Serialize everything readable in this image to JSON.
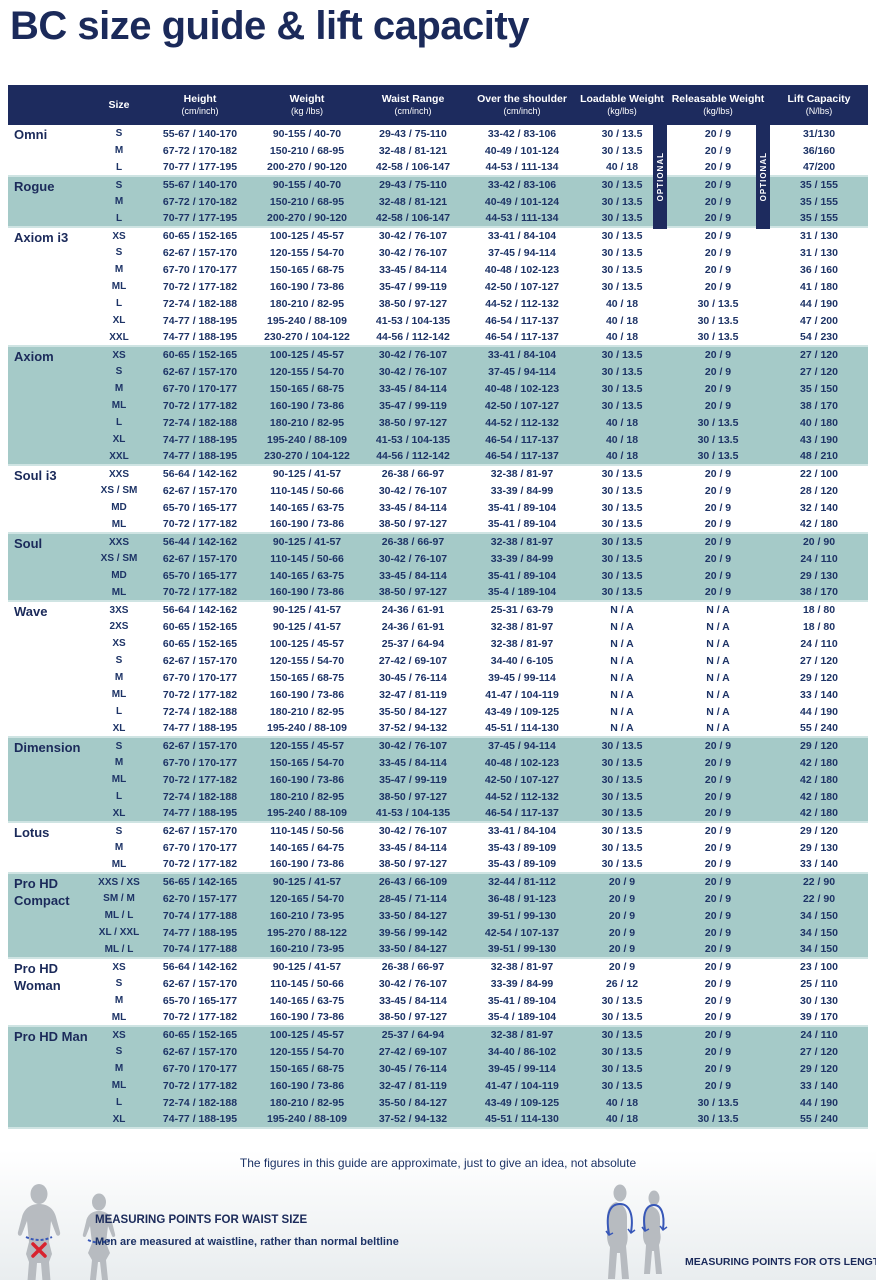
{
  "title": "BC size guide & lift capacity",
  "table": {
    "optional_label": "OPTIONAL",
    "columns": [
      {
        "label": "Size",
        "sub": ""
      },
      {
        "label": "Height",
        "sub": "(cm/inch)"
      },
      {
        "label": "Weight",
        "sub": "(kg /lbs)"
      },
      {
        "label": "Waist Range",
        "sub": "(cm/inch)"
      },
      {
        "label": "Over the shoulder",
        "sub": "(cm/inch)"
      },
      {
        "label": "Loadable Weight",
        "sub": "(kg/lbs)"
      },
      {
        "label": "Releasable Weight",
        "sub": "(kg/lbs)"
      },
      {
        "label": "Lift Capacity",
        "sub": "(N/lbs)"
      }
    ],
    "sections": [
      {
        "product": "Omni",
        "shade": "white",
        "rows": [
          [
            "S",
            "55-67 / 140-170",
            "90-155 / 40-70",
            "29-43 / 75-110",
            "33-42 / 83-106",
            "30 / 13.5",
            "20 / 9",
            "31/130"
          ],
          [
            "M",
            "67-72 / 170-182",
            "150-210 / 68-95",
            "32-48 / 81-121",
            "40-49 / 101-124",
            "30 / 13.5",
            "20 / 9",
            "36/160"
          ],
          [
            "L",
            "70-77 / 177-195",
            "200-270 / 90-120",
            "42-58 / 106-147",
            "44-53 / 111-134",
            "40 / 18",
            "20 / 9",
            "47/200"
          ]
        ]
      },
      {
        "product": "Rogue",
        "shade": "teal",
        "rows": [
          [
            "S",
            "55-67 / 140-170",
            "90-155 / 40-70",
            "29-43 / 75-110",
            "33-42 / 83-106",
            "30 / 13.5",
            "20 / 9",
            "35 / 155"
          ],
          [
            "M",
            "67-72 / 170-182",
            "150-210 / 68-95",
            "32-48 / 81-121",
            "40-49 / 101-124",
            "30 / 13.5",
            "20 / 9",
            "35 / 155"
          ],
          [
            "L",
            "70-77 / 177-195",
            "200-270 / 90-120",
            "42-58 / 106-147",
            "44-53 / 111-134",
            "30 / 13.5",
            "20 / 9",
            "35 / 155"
          ]
        ]
      },
      {
        "product": "Axiom i3",
        "shade": "white",
        "rows": [
          [
            "XS",
            "60-65 / 152-165",
            "100-125 / 45-57",
            "30-42 / 76-107",
            "33-41 / 84-104",
            "30 / 13.5",
            "20 / 9",
            "31 / 130"
          ],
          [
            "S",
            "62-67 / 157-170",
            "120-155 / 54-70",
            "30-42 / 76-107",
            "37-45 / 94-114",
            "30 / 13.5",
            "20 / 9",
            "31 / 130"
          ],
          [
            "M",
            "67-70 / 170-177",
            "150-165 / 68-75",
            "33-45 / 84-114",
            "40-48 / 102-123",
            "30 / 13.5",
            "20 / 9",
            "36 / 160"
          ],
          [
            "ML",
            "70-72 / 177-182",
            "160-190 / 73-86",
            "35-47 / 99-119",
            "42-50 / 107-127",
            "30 / 13.5",
            "20 / 9",
            "41 / 180"
          ],
          [
            "L",
            "72-74 / 182-188",
            "180-210 / 82-95",
            "38-50 / 97-127",
            "44-52 / 112-132",
            "40 / 18",
            "30 / 13.5",
            "44 / 190"
          ],
          [
            "XL",
            "74-77 / 188-195",
            "195-240 / 88-109",
            "41-53 / 104-135",
            "46-54 / 117-137",
            "40 / 18",
            "30 / 13.5",
            "47 / 200"
          ],
          [
            "XXL",
            "74-77 / 188-195",
            "230-270 / 104-122",
            "44-56 / 112-142",
            "46-54 / 117-137",
            "40 / 18",
            "30 / 13.5",
            "54 / 230"
          ]
        ]
      },
      {
        "product": "Axiom",
        "shade": "teal",
        "rows": [
          [
            "XS",
            "60-65 / 152-165",
            "100-125 / 45-57",
            "30-42 / 76-107",
            "33-41 / 84-104",
            "30 / 13.5",
            "20 / 9",
            "27 / 120"
          ],
          [
            "S",
            "62-67 / 157-170",
            "120-155 / 54-70",
            "30-42 / 76-107",
            "37-45 / 94-114",
            "30 / 13.5",
            "20 / 9",
            "27 / 120"
          ],
          [
            "M",
            "67-70 / 170-177",
            "150-165 / 68-75",
            "33-45 / 84-114",
            "40-48 / 102-123",
            "30 / 13.5",
            "20 / 9",
            "35 / 150"
          ],
          [
            "ML",
            "70-72 / 177-182",
            "160-190 / 73-86",
            "35-47 / 99-119",
            "42-50 / 107-127",
            "30 / 13.5",
            "20 / 9",
            "38 / 170"
          ],
          [
            "L",
            "72-74 / 182-188",
            "180-210 / 82-95",
            "38-50 / 97-127",
            "44-52 / 112-132",
            "40 / 18",
            "30 / 13.5",
            "40 / 180"
          ],
          [
            "XL",
            "74-77 / 188-195",
            "195-240 / 88-109",
            "41-53 / 104-135",
            "46-54 / 117-137",
            "40 / 18",
            "30 / 13.5",
            "43 / 190"
          ],
          [
            "XXL",
            "74-77 / 188-195",
            "230-270 / 104-122",
            "44-56 / 112-142",
            "46-54 / 117-137",
            "40 / 18",
            "30 / 13.5",
            "48 / 210"
          ]
        ]
      },
      {
        "product": "Soul i3",
        "shade": "white",
        "rows": [
          [
            "XXS",
            "56-64 / 142-162",
            "90-125 / 41-57",
            "26-38 / 66-97",
            "32-38 / 81-97",
            "30 / 13.5",
            "20 / 9",
            "22 / 100"
          ],
          [
            "XS / SM",
            "62-67 / 157-170",
            "110-145 / 50-66",
            "30-42 / 76-107",
            "33-39 / 84-99",
            "30 / 13.5",
            "20 / 9",
            "28 / 120"
          ],
          [
            "MD",
            "65-70 / 165-177",
            "140-165 / 63-75",
            "33-45 / 84-114",
            "35-41 / 89-104",
            "30 / 13.5",
            "20 / 9",
            "32 / 140"
          ],
          [
            "ML",
            "70-72 / 177-182",
            "160-190 / 73-86",
            "38-50 / 97-127",
            "35-41 / 89-104",
            "30 / 13.5",
            "20 / 9",
            "42 / 180"
          ]
        ]
      },
      {
        "product": "Soul",
        "shade": "teal",
        "rows": [
          [
            "XXS",
            "56-44 / 142-162",
            "90-125 / 41-57",
            "26-38 / 66-97",
            "32-38 / 81-97",
            "30 / 13.5",
            "20 / 9",
            "20 / 90"
          ],
          [
            "XS / SM",
            "62-67 / 157-170",
            "110-145 / 50-66",
            "30-42 / 76-107",
            "33-39 / 84-99",
            "30 / 13.5",
            "20 / 9",
            "24 / 110"
          ],
          [
            "MD",
            "65-70 / 165-177",
            "140-165 / 63-75",
            "33-45 / 84-114",
            "35-41 / 89-104",
            "30 / 13.5",
            "20 / 9",
            "29 / 130"
          ],
          [
            "ML",
            "70-72 / 177-182",
            "160-190 / 73-86",
            "38-50 / 97-127",
            "35-4 / 189-104",
            "30 / 13.5",
            "20 / 9",
            "38 / 170"
          ]
        ]
      },
      {
        "product": "Wave",
        "shade": "white",
        "rows": [
          [
            "3XS",
            "56-64 / 142-162",
            "90-125 / 41-57",
            "24-36 / 61-91",
            "25-31 / 63-79",
            "N / A",
            "N / A",
            "18 / 80"
          ],
          [
            "2XS",
            "60-65 / 152-165",
            "90-125 / 41-57",
            "24-36 / 61-91",
            "32-38 / 81-97",
            "N / A",
            "N / A",
            "18 / 80"
          ],
          [
            "XS",
            "60-65 / 152-165",
            "100-125 / 45-57",
            "25-37 / 64-94",
            "32-38 / 81-97",
            "N / A",
            "N / A",
            "24 / 110"
          ],
          [
            "S",
            "62-67 / 157-170",
            "120-155 / 54-70",
            "27-42 / 69-107",
            "34-40 / 6-105",
            "N / A",
            "N / A",
            "27 / 120"
          ],
          [
            "M",
            "67-70 / 170-177",
            "150-165 / 68-75",
            "30-45 / 76-114",
            "39-45 / 99-114",
            "N / A",
            "N / A",
            "29 / 120"
          ],
          [
            "ML",
            "70-72 / 177-182",
            "160-190 / 73-86",
            "32-47 / 81-119",
            "41-47 / 104-119",
            "N / A",
            "N / A",
            "33 / 140"
          ],
          [
            "L",
            "72-74 / 182-188",
            "180-210 / 82-95",
            "35-50 / 84-127",
            "43-49 / 109-125",
            "N / A",
            "N / A",
            "44 / 190"
          ],
          [
            "XL",
            "74-77 / 188-195",
            "195-240 / 88-109",
            "37-52 / 94-132",
            "45-51 / 114-130",
            "N / A",
            "N / A",
            "55 / 240"
          ]
        ]
      },
      {
        "product": "Dimension",
        "shade": "teal",
        "rows": [
          [
            "S",
            "62-67 / 157-170",
            "120-155 / 45-57",
            "30-42 / 76-107",
            "37-45 / 94-114",
            "30 / 13.5",
            "20 / 9",
            "29 / 120"
          ],
          [
            "M",
            "67-70 / 170-177",
            "150-165 / 54-70",
            "33-45 / 84-114",
            "40-48 / 102-123",
            "30 / 13.5",
            "20 / 9",
            "42 / 180"
          ],
          [
            "ML",
            "70-72 / 177-182",
            "160-190 / 73-86",
            "35-47 / 99-119",
            "42-50 / 107-127",
            "30 / 13.5",
            "20 / 9",
            "42 / 180"
          ],
          [
            "L",
            "72-74 / 182-188",
            "180-210 / 82-95",
            "38-50 / 97-127",
            "44-52 / 112-132",
            "30 / 13.5",
            "20 / 9",
            "42 / 180"
          ],
          [
            "XL",
            "74-77 / 188-195",
            "195-240 / 88-109",
            "41-53 / 104-135",
            "46-54 / 117-137",
            "30 / 13.5",
            "20 / 9",
            "42 / 180"
          ]
        ]
      },
      {
        "product": "Lotus",
        "shade": "white",
        "rows": [
          [
            "S",
            "62-67 / 157-170",
            "110-145 / 50-56",
            "30-42 / 76-107",
            "33-41 / 84-104",
            "30 / 13.5",
            "20 / 9",
            "29 / 120"
          ],
          [
            "M",
            "67-70 / 170-177",
            "140-165 / 64-75",
            "33-45 / 84-114",
            "35-43 / 89-109",
            "30 / 13.5",
            "20 / 9",
            "29 / 130"
          ],
          [
            "ML",
            "70-72 / 177-182",
            "160-190 / 73-86",
            "38-50 / 97-127",
            "35-43 / 89-109",
            "30 / 13.5",
            "20 / 9",
            "33 / 140"
          ]
        ]
      },
      {
        "product": "Pro HD Compact",
        "shade": "teal",
        "rows": [
          [
            "XXS / XS",
            "56-65 / 142-165",
            "90-125 / 41-57",
            "26-43 / 66-109",
            "32-44 / 81-112",
            "20 / 9",
            "20 / 9",
            "22 / 90"
          ],
          [
            "SM / M",
            "62-70 / 157-177",
            "120-165 / 54-70",
            "28-45 / 71-114",
            "36-48 / 91-123",
            "20 / 9",
            "20 / 9",
            "22 / 90"
          ],
          [
            "ML / L",
            "70-74 / 177-188",
            "160-210 / 73-95",
            "33-50 / 84-127",
            "39-51 / 99-130",
            "20 / 9",
            "20 / 9",
            "34 / 150"
          ],
          [
            "XL / XXL",
            "74-77 / 188-195",
            "195-270 / 88-122",
            "39-56 / 99-142",
            "42-54 / 107-137",
            "20 / 9",
            "20 / 9",
            "34 / 150"
          ],
          [
            "ML / L",
            "70-74 / 177-188",
            "160-210 / 73-95",
            "33-50 / 84-127",
            "39-51 / 99-130",
            "20 / 9",
            "20 / 9",
            "34 / 150"
          ]
        ]
      },
      {
        "product": "Pro HD Woman",
        "shade": "white",
        "rows": [
          [
            "XS",
            "56-64 / 142-162",
            "90-125 / 41-57",
            "26-38 / 66-97",
            "32-38 / 81-97",
            "20 / 9",
            "20 / 9",
            "23 / 100"
          ],
          [
            "S",
            "62-67 / 157-170",
            "110-145 / 50-66",
            "30-42 / 76-107",
            "33-39 / 84-99",
            "26 / 12",
            "20 / 9",
            "25 / 110"
          ],
          [
            "M",
            "65-70 / 165-177",
            "140-165 / 63-75",
            "33-45 / 84-114",
            "35-41 / 89-104",
            "30 / 13.5",
            "20 / 9",
            "30 / 130"
          ],
          [
            "ML",
            "70-72 / 177-182",
            "160-190 / 73-86",
            "38-50 / 97-127",
            "35-4 / 189-104",
            "30 / 13.5",
            "20 / 9",
            "39 / 170"
          ]
        ]
      },
      {
        "product": "Pro HD Man",
        "shade": "teal",
        "rows": [
          [
            "XS",
            "60-65 / 152-165",
            "100-125 / 45-57",
            "25-37 / 64-94",
            "32-38 / 81-97",
            "30 / 13.5",
            "20 / 9",
            "24 / 110"
          ],
          [
            "S",
            "62-67 / 157-170",
            "120-155 / 54-70",
            "27-42 / 69-107",
            "34-40 / 86-102",
            "30 / 13.5",
            "20 / 9",
            "27 / 120"
          ],
          [
            "M",
            "67-70 / 170-177",
            "150-165 / 68-75",
            "30-45 / 76-114",
            "39-45 / 99-114",
            "30 / 13.5",
            "20 / 9",
            "29 / 120"
          ],
          [
            "ML",
            "70-72 / 177-182",
            "160-190 / 73-86",
            "32-47 / 81-119",
            "41-47 / 104-119",
            "30 / 13.5",
            "20 / 9",
            "33 / 140"
          ],
          [
            "L",
            "72-74 / 182-188",
            "180-210 / 82-95",
            "35-50 / 84-127",
            "43-49 / 109-125",
            "40 / 18",
            "30 / 13.5",
            "44 / 190"
          ],
          [
            "XL",
            "74-77 / 188-195",
            "195-240 / 88-109",
            "37-52 / 94-132",
            "45-51 / 114-130",
            "40 / 18",
            "30 / 13.5",
            "55 / 240"
          ]
        ]
      }
    ]
  },
  "footer": {
    "note": "The figures in this guide are approximate, just to give an idea, not absolute",
    "waist_title": "MEASURING POINTS FOR WAIST SIZE",
    "waist_subtitle": "Men are measured at waistline, rather than normal beltline",
    "ots_title": "MEASURING POINTS FOR OTS LENGTH"
  },
  "colors": {
    "navy": "#1d2b5e",
    "teal_row": "#a5cac8",
    "teal_divider": "#cfe4e3",
    "text_navy": "#1d3366",
    "measure_blue": "#3757b8",
    "mark_red": "#d8232e",
    "silhouette_gray": "#b7bbc0"
  }
}
